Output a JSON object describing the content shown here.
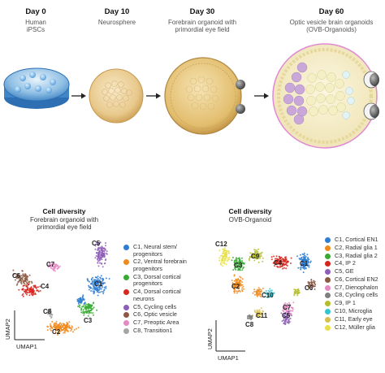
{
  "stages": [
    {
      "day": "Day 0",
      "desc": [
        "Human",
        "iPSCs"
      ]
    },
    {
      "day": "Day 10",
      "desc": [
        "Neurosphere"
      ]
    },
    {
      "day": "Day 30",
      "desc": [
        "Forebrain organoid with",
        "primordial eye field"
      ]
    },
    {
      "day": "Day 60",
      "desc": [
        "Optic vesicle brain organoids",
        "(OVB-Organoids)"
      ]
    }
  ],
  "left_panel": {
    "title": "Cell diversity",
    "subtitle": [
      "Forebrain organoid with",
      "primordial eye field"
    ],
    "x_axis": "UMAP1",
    "y_axis": "UMAP2",
    "clusters": [
      {
        "id": "C1",
        "label_lines": [
          "C1, Neural stem/",
          "progenitors"
        ],
        "color": "#2e7dd1"
      },
      {
        "id": "C2",
        "label_lines": [
          "C2, Ventral forebrain",
          "progenitors"
        ],
        "color": "#f08a1c"
      },
      {
        "id": "C3",
        "label_lines": [
          "C3, Dorsal cortical",
          "progenitors"
        ],
        "color": "#3aaa35"
      },
      {
        "id": "C4",
        "label_lines": [
          "C4, Dorsal cortical",
          "neurons"
        ],
        "color": "#d7261e"
      },
      {
        "id": "C5",
        "label_lines": [
          "C5, Cycling cells"
        ],
        "color": "#8e5fb8"
      },
      {
        "id": "C6",
        "label_lines": [
          "C6, Optic vesicle"
        ],
        "color": "#8c5a44"
      },
      {
        "id": "C7",
        "label_lines": [
          "C7, Preoptic Area"
        ],
        "color": "#e58ac4"
      },
      {
        "id": "C8",
        "label_lines": [
          "C8, Transition1"
        ],
        "color": "#a5a5a5"
      }
    ]
  },
  "right_panel": {
    "title": "Cell diversity",
    "subtitle": [
      "OVB-Organoid"
    ],
    "x_axis": "UMAP1",
    "y_axis": "UMAP2",
    "clusters": [
      {
        "id": "C1",
        "label": "C1, Cortical EN1",
        "color": "#2e7dd1"
      },
      {
        "id": "C2",
        "label": "C2, Radial glia 1",
        "color": "#f08a1c"
      },
      {
        "id": "C3",
        "label": "C3, Radial glia 2",
        "color": "#3aaa35"
      },
      {
        "id": "C4",
        "label": "C4, IP 2",
        "color": "#d7261e"
      },
      {
        "id": "C5",
        "label": "C5, GE",
        "color": "#8e5fb8"
      },
      {
        "id": "C6",
        "label": "C6, Cortical EN2",
        "color": "#8c5a44"
      },
      {
        "id": "C7",
        "label": "C7, Dienophalon",
        "color": "#e58ac4"
      },
      {
        "id": "C8",
        "label": "C8, Cycling cells",
        "color": "#7f7f7f"
      },
      {
        "id": "C9",
        "label": "C9, IP 1",
        "color": "#b6bd2a"
      },
      {
        "id": "C10",
        "label": "C10, Microglia",
        "color": "#38c4cf"
      },
      {
        "id": "C11",
        "label": "C11, Early eye",
        "color": "#d9c04a"
      },
      {
        "id": "C12",
        "label": "C12, Müller glia",
        "color": "#e8e04a"
      }
    ]
  }
}
